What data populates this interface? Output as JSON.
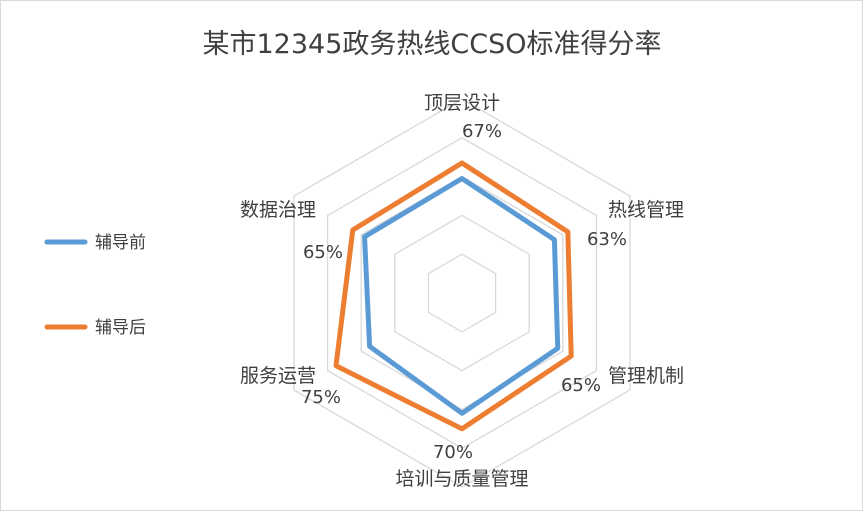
{
  "chart_data": {
    "type": "radar",
    "title": "某市12345政务热线CCSO标准得分率",
    "categories": [
      "顶层设计",
      "热线管理",
      "管理机制",
      "培训与质量管理",
      "服务运营",
      "数据治理"
    ],
    "series": [
      {
        "name": "辅导前",
        "color": "#5b9bd5",
        "values": [
          59,
          55,
          57,
          62,
          55,
          58
        ]
      },
      {
        "name": "辅导后",
        "color": "#ed7d31",
        "values": [
          67,
          63,
          65,
          70,
          75,
          65
        ]
      }
    ],
    "data_labels": [
      "67%",
      "63%",
      "65%",
      "70%",
      "75%",
      "65%"
    ],
    "r_range": [
      0,
      100
    ],
    "grid": true,
    "gridline_color": "#d9d9d9",
    "legend_position": "left"
  }
}
